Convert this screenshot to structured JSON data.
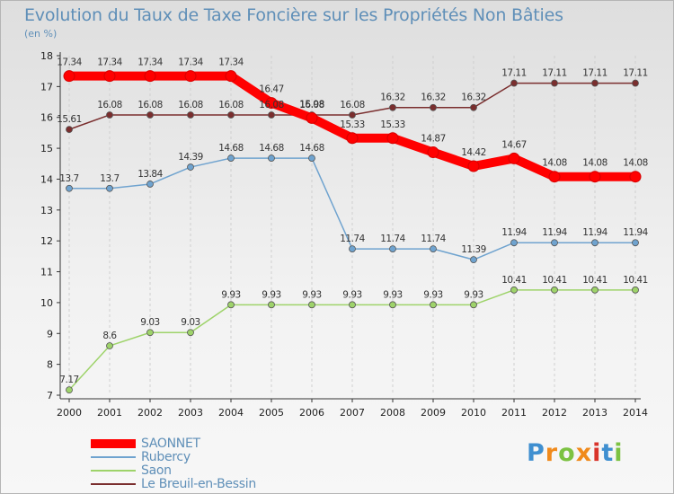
{
  "title": "Evolution du Taux de Taxe Foncière sur les Propriétés Non Bâties",
  "unit_label": "(en %)",
  "logo": "Proxiti",
  "chart_data": {
    "type": "line",
    "categories": [
      "2000",
      "2001",
      "2002",
      "2003",
      "2004",
      "2005",
      "2006",
      "2007",
      "2008",
      "2009",
      "2010",
      "2011",
      "2012",
      "2013",
      "2014"
    ],
    "ylim": [
      7,
      18
    ],
    "yticks": [
      "7",
      "8",
      "9",
      "10",
      "11",
      "12",
      "13",
      "14",
      "15",
      "16",
      "17",
      "18"
    ],
    "grid": "vertical dashed",
    "legend_position": "bottom-left",
    "series": [
      {
        "name": "SAONNET",
        "color": "#ff0000",
        "values": [
          17.34,
          17.34,
          17.34,
          17.34,
          17.34,
          16.47,
          15.98,
          15.33,
          15.33,
          14.87,
          14.42,
          14.67,
          14.08,
          14.08,
          14.08
        ],
        "labels": [
          "17.34",
          "17.34",
          "17.34",
          "17.34",
          "17.34",
          "16.47",
          "15.98",
          "15.33",
          "15.33",
          "14.87",
          "14.42",
          "14.67",
          "14.08",
          "14.08",
          "14.08"
        ]
      },
      {
        "name": "Rubercy",
        "color": "#6fa3cf",
        "values": [
          13.7,
          13.7,
          13.84,
          14.39,
          14.68,
          14.68,
          14.68,
          11.74,
          11.74,
          11.74,
          11.39,
          11.94,
          11.94,
          11.94,
          11.94
        ],
        "labels": [
          "13.7",
          "13.7",
          "13.84",
          "14.39",
          "14.68",
          "14.68",
          "14.68",
          "11.74",
          "11.74",
          "11.74",
          "11.39",
          "11.94",
          "11.94",
          "11.94",
          "11.94"
        ]
      },
      {
        "name": "Saon",
        "color": "#9ed36a",
        "values": [
          7.17,
          8.6,
          9.03,
          9.03,
          9.93,
          9.93,
          9.93,
          9.93,
          9.93,
          9.93,
          9.93,
          10.41,
          10.41,
          10.41,
          10.41
        ],
        "labels": [
          "7.17",
          "8.6",
          "9.03",
          "9.03",
          "9.93",
          "9.93",
          "9.93",
          "9.93",
          "9.93",
          "9.93",
          "9.93",
          "10.41",
          "10.41",
          "10.41",
          "10.41"
        ]
      },
      {
        "name": "Le Breuil-en-Bessin",
        "color": "#7a2e2e",
        "values": [
          15.61,
          16.08,
          16.08,
          16.08,
          16.08,
          16.08,
          16.08,
          16.08,
          16.32,
          16.32,
          16.32,
          17.11,
          17.11,
          17.11,
          17.11
        ],
        "labels": [
          "15.61",
          "16.08",
          "16.08",
          "16.08",
          "16.08",
          "16.08",
          "16.08",
          "16.08",
          "16.32",
          "16.32",
          "16.32",
          "17.11",
          "17.11",
          "17.11",
          "17.11"
        ]
      }
    ]
  }
}
